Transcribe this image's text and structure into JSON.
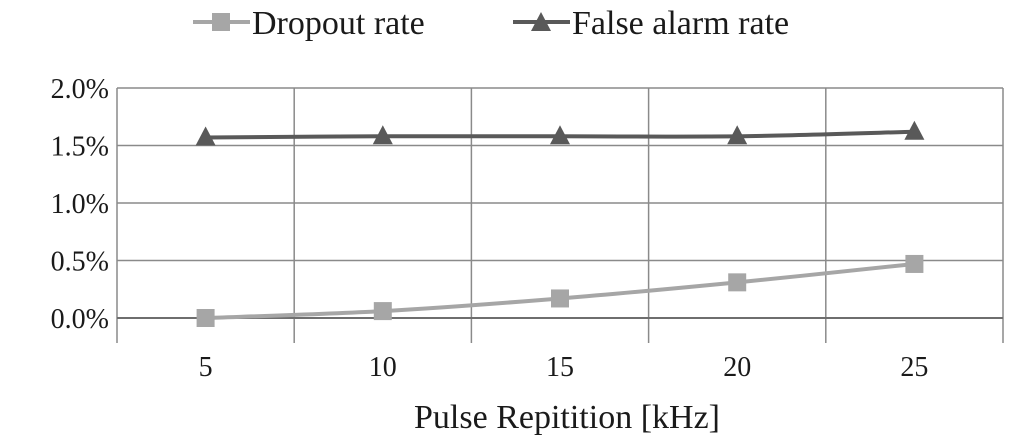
{
  "chart_data": {
    "type": "line",
    "categories": [
      "5",
      "10",
      "15",
      "20",
      "25"
    ],
    "xlabel": "Pulse Repitition [kHz]",
    "ylabel": "",
    "ylim": [
      0,
      0.02
    ],
    "ytick_values": [
      0,
      0.005,
      0.01,
      0.015,
      0.02
    ],
    "ytick_labels": [
      "0.0%",
      "0.5%",
      "1.0%",
      "1.5%",
      "2.0%"
    ],
    "grid": true,
    "legend_position": "top",
    "series": [
      {
        "name": "Dropout rate",
        "marker": "square",
        "color": "#a6a6a6",
        "values": [
          0.0,
          0.0006,
          0.0017,
          0.0031,
          0.0047
        ]
      },
      {
        "name": "False alarm rate",
        "marker": "triangle",
        "color": "#595959",
        "values": [
          0.0157,
          0.0158,
          0.0158,
          0.0158,
          0.0162
        ]
      }
    ]
  }
}
